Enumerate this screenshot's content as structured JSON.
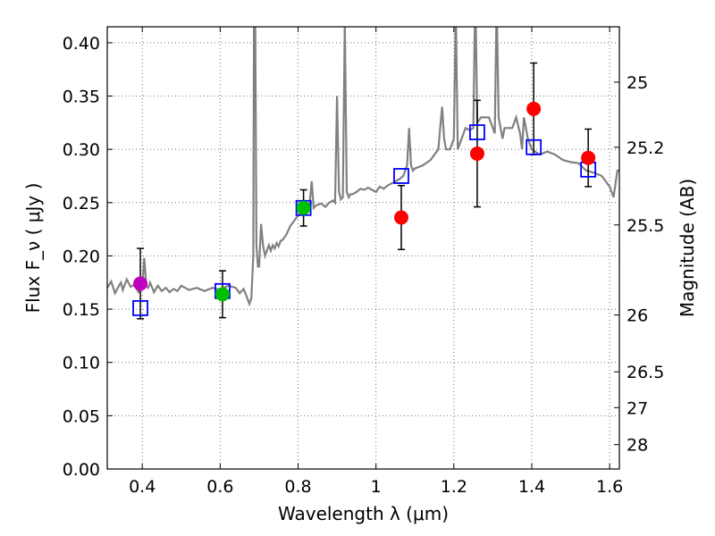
{
  "chart_data": {
    "type": "scatter",
    "title": "",
    "xlabel": "Wavelength  λ (μm)",
    "ylabel": "Flux  F_ν  ( μJy )",
    "ylabel_right": "Magnitude (AB)",
    "xlim": [
      0.31,
      1.625
    ],
    "ylim": [
      0.0,
      0.415
    ],
    "grid": true,
    "x_ticks": [
      0.4,
      0.6,
      0.8,
      1.0,
      1.2,
      1.4,
      1.6
    ],
    "x_tick_labels": [
      "0.4",
      "0.6",
      "0.8",
      "1",
      "1.2",
      "1.4",
      "1.6"
    ],
    "y_ticks": [
      0.0,
      0.05,
      0.1,
      0.15,
      0.2,
      0.25,
      0.3,
      0.35,
      0.4
    ],
    "y_tick_labels": [
      "0.00",
      "0.05",
      "0.10",
      "0.15",
      "0.20",
      "0.25",
      "0.30",
      "0.35",
      "0.40"
    ],
    "right_ticks": [
      {
        "label": "25",
        "mag": 25.0
      },
      {
        "label": "25.2",
        "mag": 25.2
      },
      {
        "label": "25.5",
        "mag": 25.5
      },
      {
        "label": "26",
        "mag": 26.0
      },
      {
        "label": "26.5",
        "mag": 26.5
      },
      {
        "label": "27",
        "mag": 27.0
      },
      {
        "label": "28",
        "mag": 28.0
      }
    ],
    "observed": [
      {
        "x": 0.395,
        "y": 0.174,
        "err": 0.033,
        "color": "#bf00bf"
      },
      {
        "x": 0.606,
        "y": 0.164,
        "err": 0.022,
        "color": "#00bf00"
      },
      {
        "x": 0.814,
        "y": 0.245,
        "err": 0.017,
        "color": "#00bf00"
      },
      {
        "x": 1.065,
        "y": 0.236,
        "err": 0.03,
        "color": "#ff0000"
      },
      {
        "x": 1.26,
        "y": 0.296,
        "err": 0.05,
        "color": "#ff0000"
      },
      {
        "x": 1.405,
        "y": 0.338,
        "err": 0.043,
        "color": "#ff0000"
      },
      {
        "x": 1.545,
        "y": 0.292,
        "err": 0.027,
        "color": "#ff0000"
      }
    ],
    "model_points": [
      {
        "x": 0.395,
        "y": 0.151
      },
      {
        "x": 0.606,
        "y": 0.167
      },
      {
        "x": 0.814,
        "y": 0.245
      },
      {
        "x": 1.065,
        "y": 0.275
      },
      {
        "x": 1.26,
        "y": 0.316
      },
      {
        "x": 1.405,
        "y": 0.302
      },
      {
        "x": 1.545,
        "y": 0.281
      }
    ],
    "spectrum": {
      "x": [
        0.31,
        0.32,
        0.33,
        0.34,
        0.345,
        0.35,
        0.36,
        0.37,
        0.38,
        0.39,
        0.4,
        0.405,
        0.41,
        0.415,
        0.42,
        0.43,
        0.44,
        0.45,
        0.46,
        0.47,
        0.48,
        0.49,
        0.5,
        0.52,
        0.54,
        0.56,
        0.58,
        0.6,
        0.62,
        0.64,
        0.65,
        0.66,
        0.67,
        0.675,
        0.68,
        0.685,
        0.687,
        0.69,
        0.693,
        0.697,
        0.7,
        0.705,
        0.71,
        0.715,
        0.72,
        0.725,
        0.73,
        0.735,
        0.74,
        0.745,
        0.75,
        0.755,
        0.76,
        0.77,
        0.78,
        0.79,
        0.8,
        0.81,
        0.82,
        0.83,
        0.835,
        0.84,
        0.845,
        0.85,
        0.86,
        0.87,
        0.88,
        0.89,
        0.895,
        0.9,
        0.905,
        0.91,
        0.915,
        0.92,
        0.925,
        0.93,
        0.935,
        0.94,
        0.95,
        0.96,
        0.97,
        0.98,
        0.99,
        1.0,
        1.01,
        1.02,
        1.03,
        1.04,
        1.05,
        1.06,
        1.07,
        1.08,
        1.085,
        1.09,
        1.095,
        1.1,
        1.12,
        1.14,
        1.16,
        1.17,
        1.175,
        1.18,
        1.19,
        1.2,
        1.205,
        1.21,
        1.215,
        1.22,
        1.225,
        1.23,
        1.24,
        1.25,
        1.255,
        1.26,
        1.27,
        1.28,
        1.29,
        1.3,
        1.305,
        1.31,
        1.315,
        1.32,
        1.325,
        1.33,
        1.34,
        1.35,
        1.36,
        1.37,
        1.375,
        1.38,
        1.39,
        1.4,
        1.42,
        1.44,
        1.46,
        1.48,
        1.5,
        1.52,
        1.54,
        1.56,
        1.58,
        1.59,
        1.6,
        1.61,
        1.62,
        1.625
      ],
      "y": [
        0.17,
        0.176,
        0.165,
        0.172,
        0.175,
        0.168,
        0.178,
        0.171,
        0.173,
        0.166,
        0.172,
        0.198,
        0.172,
        0.17,
        0.175,
        0.166,
        0.172,
        0.167,
        0.17,
        0.166,
        0.169,
        0.167,
        0.172,
        0.168,
        0.17,
        0.167,
        0.17,
        0.168,
        0.172,
        0.17,
        0.165,
        0.169,
        0.16,
        0.155,
        0.16,
        0.2,
        0.45,
        0.42,
        0.21,
        0.19,
        0.19,
        0.23,
        0.21,
        0.2,
        0.205,
        0.21,
        0.205,
        0.21,
        0.207,
        0.212,
        0.209,
        0.214,
        0.215,
        0.22,
        0.228,
        0.233,
        0.238,
        0.24,
        0.24,
        0.25,
        0.27,
        0.245,
        0.247,
        0.248,
        0.249,
        0.246,
        0.25,
        0.252,
        0.25,
        0.35,
        0.26,
        0.253,
        0.255,
        0.42,
        0.26,
        0.255,
        0.258,
        0.258,
        0.26,
        0.263,
        0.262,
        0.264,
        0.262,
        0.26,
        0.265,
        0.263,
        0.266,
        0.268,
        0.27,
        0.272,
        0.275,
        0.285,
        0.32,
        0.285,
        0.28,
        0.282,
        0.285,
        0.29,
        0.3,
        0.34,
        0.31,
        0.3,
        0.3,
        0.31,
        0.43,
        0.3,
        0.305,
        0.31,
        0.315,
        0.32,
        0.318,
        0.32,
        0.45,
        0.325,
        0.33,
        0.33,
        0.33,
        0.32,
        0.315,
        0.44,
        0.33,
        0.32,
        0.31,
        0.32,
        0.32,
        0.32,
        0.33,
        0.315,
        0.3,
        0.33,
        0.31,
        0.3,
        0.295,
        0.298,
        0.295,
        0.29,
        0.288,
        0.287,
        0.28,
        0.278,
        0.275,
        0.27,
        0.265,
        0.255,
        0.28,
        0.28
      ]
    }
  }
}
